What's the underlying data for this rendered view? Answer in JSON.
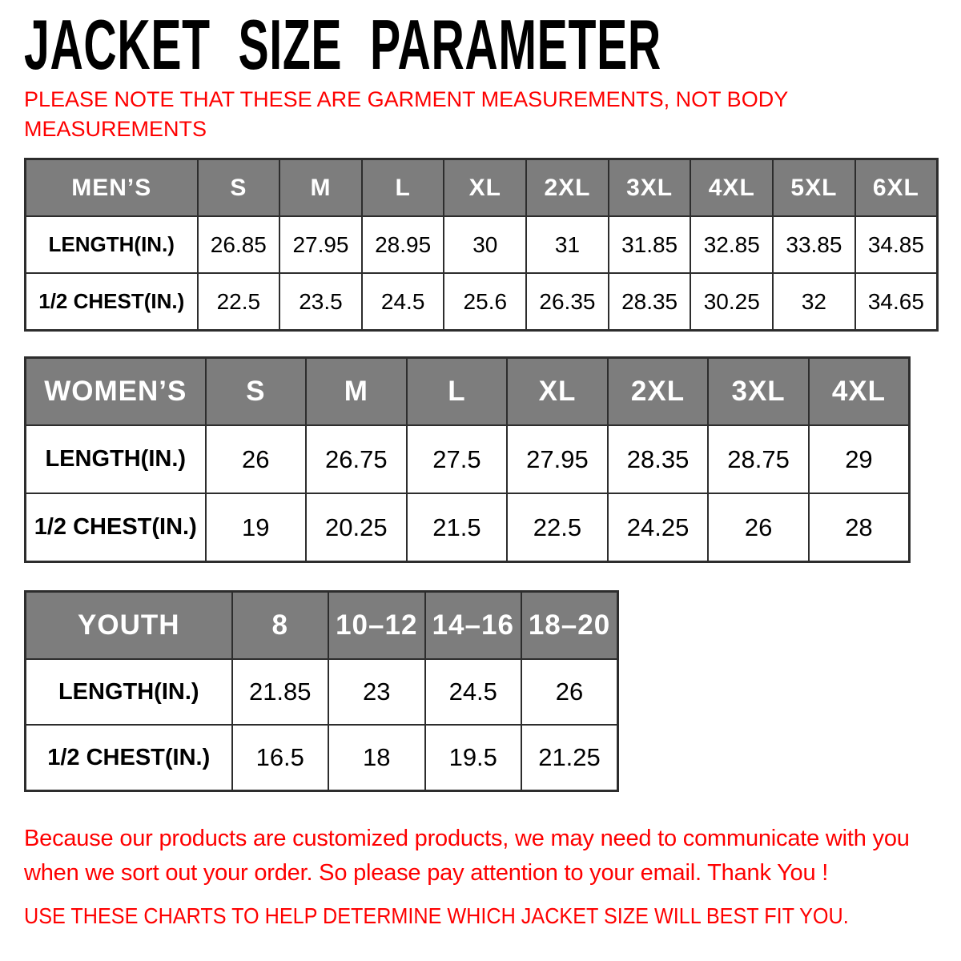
{
  "page": {
    "title": "JACKET SIZE PARAMETER",
    "note_lines": [
      "PLEASE NOTE THAT THESE ARE GARMENT MEASUREMENTS, NOT BODY",
      "MEASUREMENTS"
    ],
    "footer_lines": [
      "Because our products are customized products, we may need to communicate with you",
      "when we sort out your order. So please pay attention to your email. Thank You !"
    ],
    "footer_emphasis": "USE THESE CHARTS TO HELP DETERMINE WHICH JACKET SIZE WILL BEST FIT YOU."
  },
  "colors": {
    "header_bg": "#7d7d7d",
    "header_text": "#ffffff",
    "table_border": "#2d2d2d",
    "accent_red": "#fe0000",
    "text": "#000000"
  },
  "tables": {
    "mens": {
      "title": "MEN’S",
      "sizes": [
        "S",
        "M",
        "L",
        "XL",
        "2XL",
        "3XL",
        "4XL",
        "5XL",
        "6XL"
      ],
      "rows": [
        {
          "label": "LENGTH(IN.)",
          "values": [
            "26.85",
            "27.95",
            "28.95",
            "30",
            "31",
            "31.85",
            "32.85",
            "33.85",
            "34.85"
          ]
        },
        {
          "label": "1/2 CHEST(IN.)",
          "values": [
            "22.5",
            "23.5",
            "24.5",
            "25.6",
            "26.35",
            "28.35",
            "30.25",
            "32",
            "34.65"
          ]
        }
      ]
    },
    "womens": {
      "title": "WOMEN’S",
      "sizes": [
        "S",
        "M",
        "L",
        "XL",
        "2XL",
        "3XL",
        "4XL"
      ],
      "rows": [
        {
          "label": "LENGTH(IN.)",
          "values": [
            "26",
            "26.75",
            "27.5",
            "27.95",
            "28.35",
            "28.75",
            "29"
          ]
        },
        {
          "label": "1/2 CHEST(IN.)",
          "values": [
            "19",
            "20.25",
            "21.5",
            "22.5",
            "24.25",
            "26",
            "28"
          ]
        }
      ]
    },
    "youth": {
      "title": "YOUTH",
      "sizes": [
        "8",
        "10–12",
        "14–16",
        "18–20"
      ],
      "rows": [
        {
          "label": "LENGTH(IN.)",
          "values": [
            "21.85",
            "23",
            "24.5",
            "26"
          ]
        },
        {
          "label": "1/2 CHEST(IN.)",
          "values": [
            "16.5",
            "18",
            "19.5",
            "21.25"
          ]
        }
      ]
    }
  }
}
